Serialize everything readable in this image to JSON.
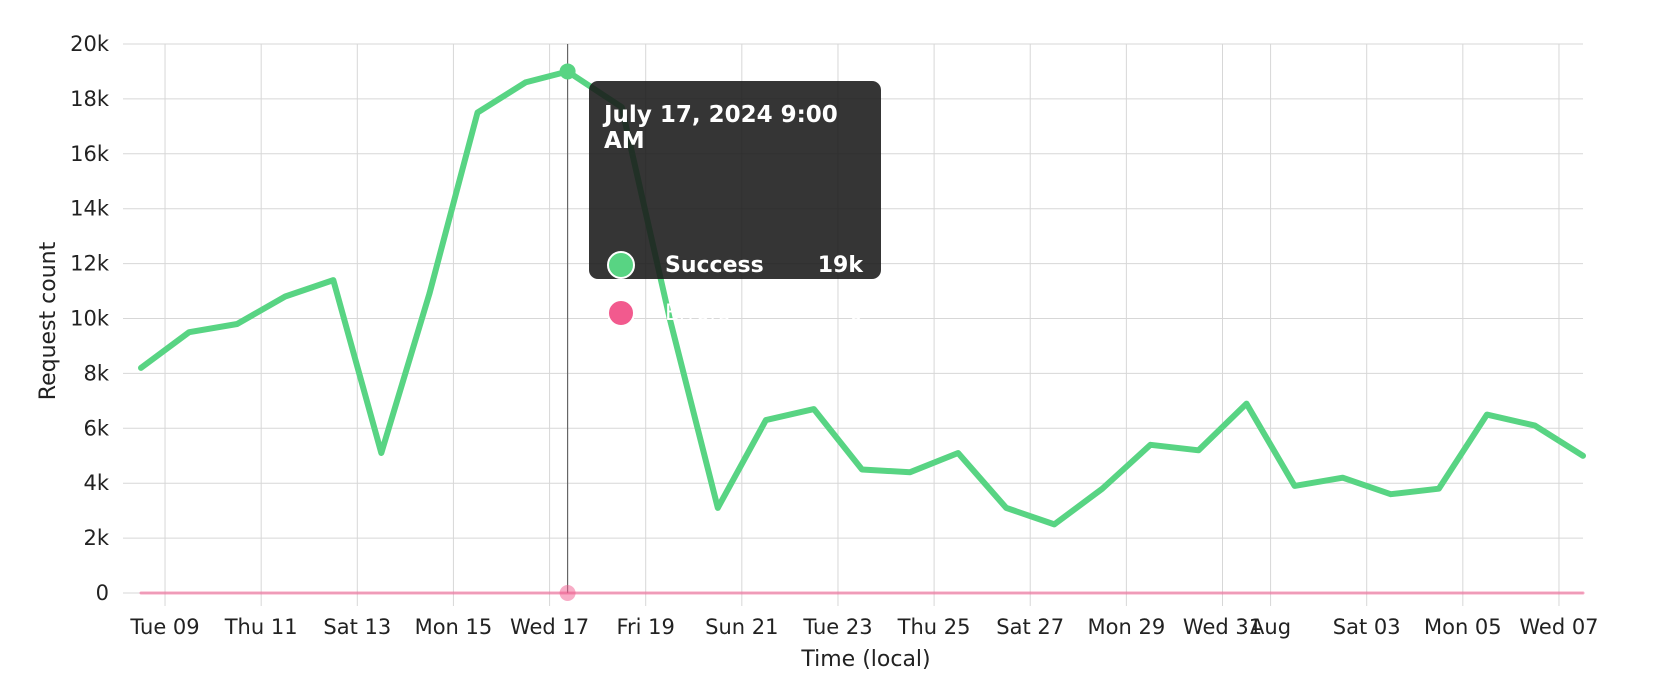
{
  "chart_data": {
    "type": "line",
    "xlabel": "Time (local)",
    "ylabel": "Request count",
    "ylim": [
      0,
      20000
    ],
    "yticks": [
      0,
      2000,
      4000,
      6000,
      8000,
      10000,
      12000,
      14000,
      16000,
      18000,
      20000
    ],
    "ytick_labels": [
      "0",
      "2k",
      "4k",
      "6k",
      "8k",
      "10k",
      "12k",
      "14k",
      "16k",
      "18k",
      "20k"
    ],
    "x_range": [
      "2024-07-08 12:00",
      "2024-08-07 12:00"
    ],
    "xticks": [
      "2024-07-09",
      "2024-07-11",
      "2024-07-13",
      "2024-07-15",
      "2024-07-17",
      "2024-07-19",
      "2024-07-21",
      "2024-07-23",
      "2024-07-25",
      "2024-07-27",
      "2024-07-29",
      "2024-07-31",
      "2024-08-01",
      "2024-08-03",
      "2024-08-05",
      "2024-08-07"
    ],
    "xtick_labels": [
      "Tue 09",
      "Thu 11",
      "Sat 13",
      "Mon 15",
      "Wed 17",
      "Fri 19",
      "Sun 21",
      "Tue 23",
      "Thu 25",
      "Sat 27",
      "Mon 29",
      "Wed 31",
      "Aug",
      "Sat 03",
      "Mon 05",
      "Wed 07"
    ],
    "grid": true,
    "x": [
      "2024-07-08 12:00",
      "2024-07-09 12:00",
      "2024-07-10 12:00",
      "2024-07-11 12:00",
      "2024-07-12 12:00",
      "2024-07-13 12:00",
      "2024-07-14 12:00",
      "2024-07-15 12:00",
      "2024-07-16 12:00",
      "2024-07-17 09:00",
      "2024-07-18 12:00",
      "2024-07-19 12:00",
      "2024-07-20 12:00",
      "2024-07-21 12:00",
      "2024-07-22 12:00",
      "2024-07-23 12:00",
      "2024-07-24 12:00",
      "2024-07-25 12:00",
      "2024-07-26 12:00",
      "2024-07-27 12:00",
      "2024-07-28 12:00",
      "2024-07-29 12:00",
      "2024-07-30 12:00",
      "2024-07-31 12:00",
      "2024-08-01 12:00",
      "2024-08-02 12:00",
      "2024-08-03 12:00",
      "2024-08-04 12:00",
      "2024-08-05 12:00",
      "2024-08-06 12:00",
      "2024-08-07 12:00"
    ],
    "series": [
      {
        "name": "Success",
        "color": "#58d483",
        "values": [
          8200,
          9500,
          9800,
          10800,
          11400,
          5100,
          10900,
          17500,
          18600,
          19000,
          17700,
          10000,
          3100,
          6300,
          6700,
          4500,
          4400,
          5100,
          3100,
          2500,
          3800,
          5400,
          5200,
          6900,
          3900,
          4200,
          3600,
          3800,
          6500,
          6100,
          5000
        ]
      },
      {
        "name": "Errors",
        "color": "#f25a8e",
        "values": [
          0,
          0,
          0,
          0,
          0,
          0,
          0,
          0,
          0,
          0,
          0,
          0,
          0,
          0,
          0,
          0,
          0,
          0,
          0,
          0,
          0,
          0,
          0,
          0,
          0,
          0,
          0,
          0,
          0,
          0,
          0
        ]
      }
    ],
    "hover_index": 9,
    "tooltip": {
      "title": "July 17, 2024 9:00 AM",
      "rows": [
        {
          "label": "Success",
          "value": "19k",
          "color": "#58d483"
        },
        {
          "label": "Errors",
          "value": "0",
          "color": "#f25a8e"
        }
      ]
    }
  }
}
